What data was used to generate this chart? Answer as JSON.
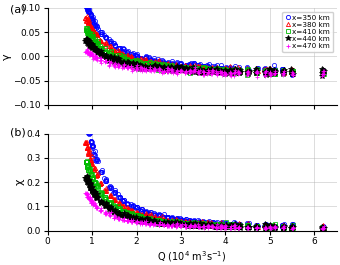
{
  "title_a": "(a)",
  "title_b": "(b)",
  "xlabel": "Q (10$^4$ m$^3$s$^{-1}$)",
  "ylabel_a": "γ",
  "ylabel_b": "χ",
  "xlim": [
    0,
    6.5
  ],
  "ylim_a": [
    -0.1,
    0.1
  ],
  "ylim_b": [
    0,
    0.4
  ],
  "xticks": [
    0,
    1,
    2,
    3,
    4,
    5,
    6
  ],
  "yticks_a": [
    -0.1,
    -0.05,
    0,
    0.05,
    0.1
  ],
  "yticks_b": [
    0,
    0.1,
    0.2,
    0.3,
    0.4
  ],
  "series": [
    {
      "label": "x=350 km",
      "color": "#0000FF",
      "marker": "o",
      "marker_size": 3.0
    },
    {
      "label": "x=380 km",
      "color": "#FF0000",
      "marker": "^",
      "marker_size": 3.0
    },
    {
      "label": "x=410 km",
      "color": "#00BB00",
      "marker": "s",
      "marker_size": 2.5
    },
    {
      "label": "x=440 km",
      "color": "#000000",
      "marker": "*",
      "marker_size": 4.0
    },
    {
      "label": "x=470 km",
      "color": "#FF00FF",
      "marker": "+",
      "marker_size": 3.5
    }
  ],
  "gamma_offsets": [
    0.115,
    0.095,
    0.075,
    0.058,
    0.04
  ],
  "chi_offsets": [
    0.34,
    0.27,
    0.21,
    0.16,
    0.11
  ],
  "gamma_decay": 1.55,
  "chi_decay": 2.0,
  "gamma_shift": -0.038,
  "chi_floor": 0.003,
  "Q_discrete": [
    0.87,
    0.9,
    0.93,
    0.97,
    1.0,
    1.05,
    1.1,
    1.2,
    1.3,
    1.4,
    1.5,
    1.6,
    1.7,
    1.8,
    1.9,
    2.0,
    2.1,
    2.2,
    2.3,
    2.4,
    2.5,
    2.6,
    2.7,
    2.8,
    2.9,
    3.0,
    3.1,
    3.2,
    3.3,
    3.4,
    3.5,
    3.6,
    3.7,
    3.8,
    3.9,
    4.0,
    4.1,
    4.2,
    4.3,
    4.5,
    4.7,
    4.9,
    5.0,
    5.1,
    5.3,
    5.5,
    6.2
  ],
  "pts_per_Q": 6,
  "noise_gamma": 0.003,
  "noise_chi": 0.006
}
